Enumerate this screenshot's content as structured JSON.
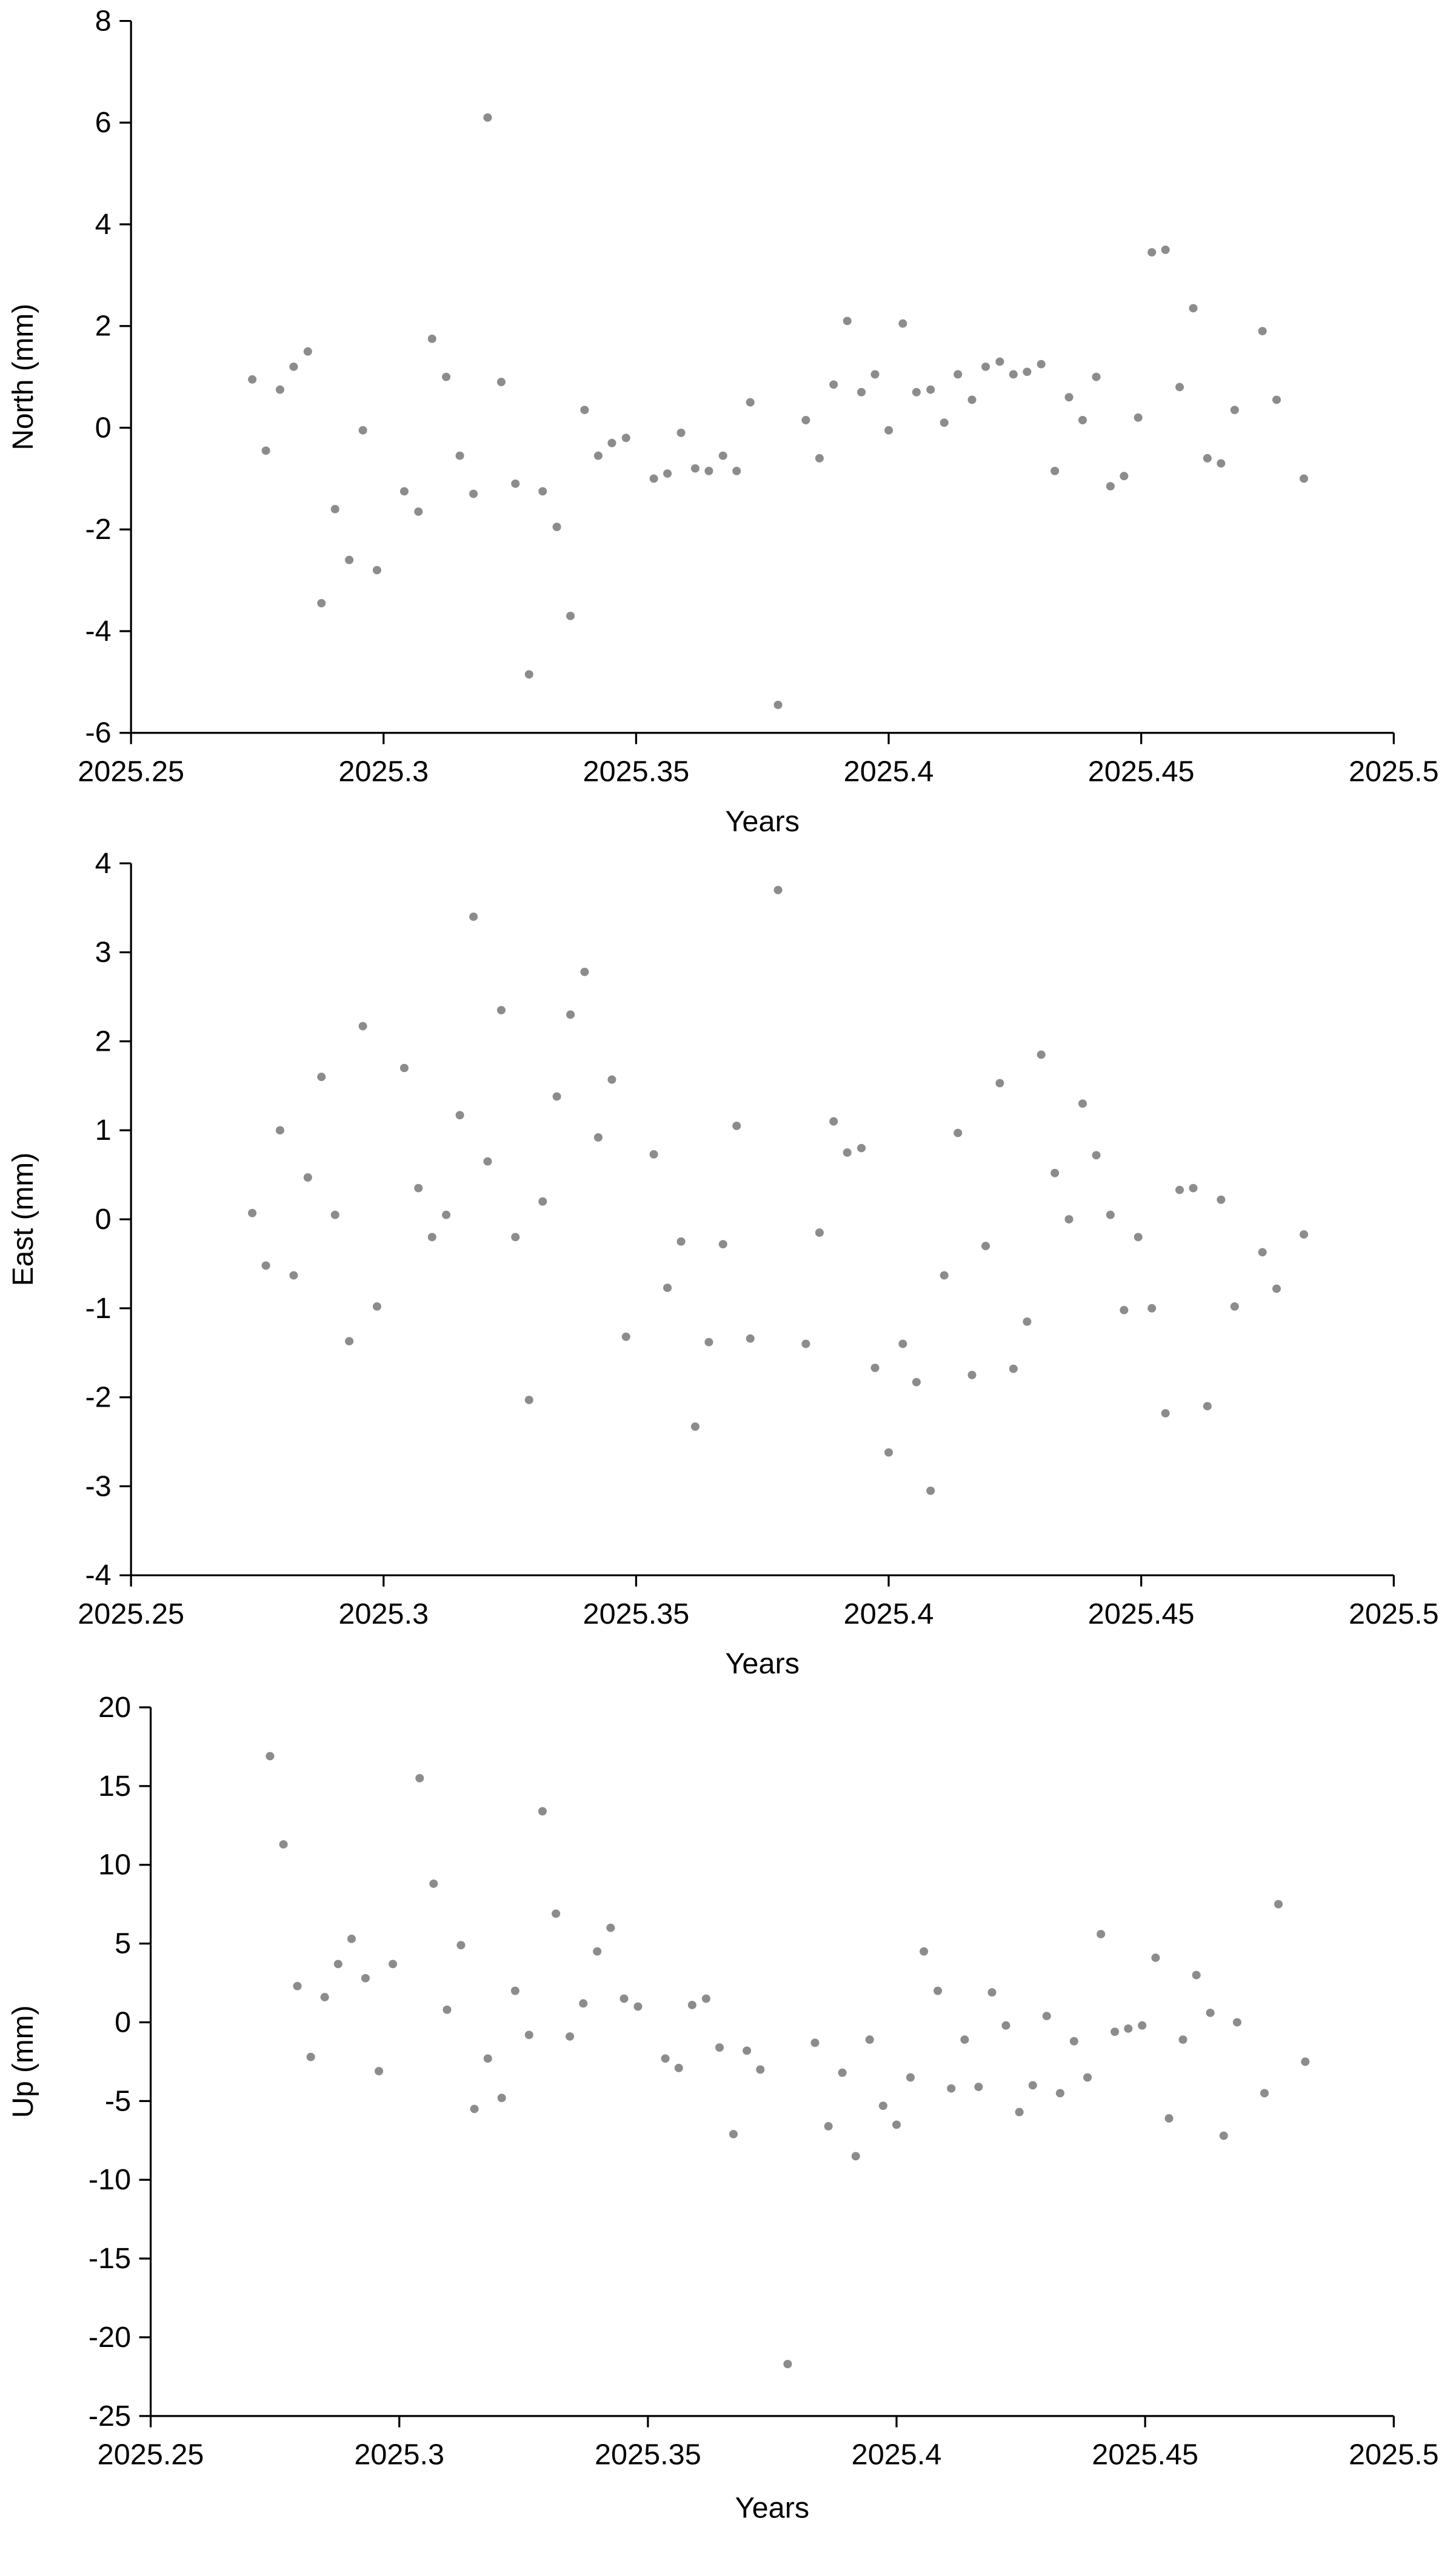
{
  "chart_data": [
    {
      "type": "scatter",
      "ylabel": "North (mm)",
      "xlabel": "Years",
      "color": "#8c8c8c",
      "x": [
        2025.274,
        2025.2767,
        2025.2795,
        2025.2822,
        2025.285,
        2025.2877,
        2025.2904,
        2025.2932,
        2025.2959,
        2025.2987,
        2025.3041,
        2025.3069,
        2025.3096,
        2025.3124,
        2025.3151,
        2025.3178,
        2025.3206,
        2025.3233,
        2025.3261,
        2025.3288,
        2025.3315,
        2025.3343,
        2025.337,
        2025.3398,
        2025.3425,
        2025.3452,
        2025.348,
        2025.3535,
        2025.3562,
        2025.3589,
        2025.3617,
        2025.3644,
        2025.3672,
        2025.3699,
        2025.3726,
        2025.3781,
        2025.3836,
        2025.3863,
        2025.3891,
        2025.3918,
        2025.3946,
        2025.3973,
        2025.4,
        2025.4028,
        2025.4055,
        2025.4083,
        2025.411,
        2025.4137,
        2025.4165,
        2025.4192,
        2025.422,
        2025.4247,
        2025.4274,
        2025.4302,
        2025.4329,
        2025.4357,
        2025.4384,
        2025.4411,
        2025.4439,
        2025.4466,
        2025.4494,
        2025.4521,
        2025.4548,
        2025.4576,
        2025.4603,
        2025.4631,
        2025.4658,
        2025.4685,
        2025.474,
        2025.4768,
        2025.4822
      ],
      "values": [
        0.95,
        -0.45,
        0.75,
        1.2,
        1.5,
        -3.45,
        -1.6,
        -2.6,
        -0.05,
        -2.8,
        -1.25,
        -1.65,
        1.75,
        1.0,
        -0.55,
        -1.3,
        6.1,
        0.9,
        -1.1,
        -4.85,
        -1.25,
        -1.95,
        -3.7,
        0.35,
        -0.55,
        -0.3,
        -0.2,
        -1.0,
        -0.9,
        -0.1,
        -0.8,
        -0.85,
        -0.55,
        -0.85,
        0.5,
        -5.45,
        0.15,
        -0.6,
        0.85,
        2.1,
        0.7,
        1.05,
        -0.05,
        2.05,
        0.7,
        0.75,
        0.1,
        1.05,
        0.55,
        1.2,
        1.3,
        1.05,
        1.1,
        1.25,
        -0.85,
        0.6,
        0.15,
        1.0,
        -1.15,
        -0.95,
        0.2,
        3.45,
        3.5,
        0.8,
        2.35,
        -0.6,
        -0.7,
        0.35,
        1.9,
        0.55,
        -1.0
      ],
      "xlim": [
        2025.25,
        2025.5
      ],
      "xticks": [
        2025.25,
        2025.3,
        2025.35,
        2025.4,
        2025.45,
        2025.5
      ],
      "ylim": [
        -6,
        8
      ],
      "yticks": [
        -6,
        -4,
        -2,
        0,
        2,
        4,
        6,
        8
      ]
    },
    {
      "type": "scatter",
      "ylabel": "East (mm)",
      "xlabel": "Years",
      "color": "#8c8c8c",
      "x": [
        2025.274,
        2025.2767,
        2025.2795,
        2025.2822,
        2025.285,
        2025.2877,
        2025.2904,
        2025.2932,
        2025.2959,
        2025.2987,
        2025.3041,
        2025.3069,
        2025.3096,
        2025.3124,
        2025.3151,
        2025.3178,
        2025.3206,
        2025.3233,
        2025.3261,
        2025.3288,
        2025.3315,
        2025.3343,
        2025.337,
        2025.3398,
        2025.3425,
        2025.3452,
        2025.348,
        2025.3535,
        2025.3562,
        2025.3589,
        2025.3617,
        2025.3644,
        2025.3672,
        2025.3699,
        2025.3726,
        2025.3781,
        2025.3836,
        2025.3863,
        2025.3891,
        2025.3918,
        2025.3946,
        2025.3973,
        2025.4,
        2025.4028,
        2025.4055,
        2025.4083,
        2025.411,
        2025.4137,
        2025.4165,
        2025.4192,
        2025.422,
        2025.4247,
        2025.4274,
        2025.4302,
        2025.4329,
        2025.4357,
        2025.4384,
        2025.4411,
        2025.4439,
        2025.4466,
        2025.4494,
        2025.4521,
        2025.4548,
        2025.4576,
        2025.4603,
        2025.4631,
        2025.4658,
        2025.4685,
        2025.474,
        2025.4768,
        2025.4822
      ],
      "values": [
        0.07,
        -0.52,
        1.0,
        -0.63,
        0.47,
        1.6,
        0.05,
        -1.37,
        2.17,
        -0.98,
        1.7,
        0.35,
        -0.2,
        0.05,
        1.17,
        3.4,
        0.65,
        2.35,
        -0.2,
        -2.03,
        0.2,
        1.38,
        2.3,
        2.78,
        0.92,
        1.57,
        -1.32,
        0.73,
        -0.77,
        -0.25,
        -2.33,
        -1.38,
        -0.28,
        1.05,
        -1.34,
        3.7,
        -1.4,
        -0.15,
        1.1,
        0.75,
        0.8,
        -1.67,
        -2.62,
        -1.4,
        -1.83,
        -3.05,
        -0.63,
        0.97,
        -1.75,
        -0.3,
        1.53,
        -1.68,
        -1.15,
        1.85,
        0.52,
        0.0,
        1.3,
        0.72,
        0.05,
        -1.02,
        -0.2,
        -1.0,
        -2.18,
        0.33,
        0.35,
        -2.1,
        0.22,
        -0.98,
        -0.37,
        -0.78,
        -0.17
      ],
      "xlim": [
        2025.25,
        2025.5
      ],
      "xticks": [
        2025.25,
        2025.3,
        2025.35,
        2025.4,
        2025.45,
        2025.5
      ],
      "ylim": [
        -4,
        4
      ],
      "yticks": [
        -4,
        -3,
        -2,
        -1,
        0,
        1,
        2,
        3,
        4
      ]
    },
    {
      "type": "scatter",
      "ylabel": "Up (mm)",
      "xlabel": "Years",
      "color": "#8c8c8c",
      "x": [
        2025.274,
        2025.2767,
        2025.2795,
        2025.2822,
        2025.285,
        2025.2877,
        2025.2904,
        2025.2932,
        2025.2959,
        2025.2987,
        2025.3041,
        2025.3069,
        2025.3096,
        2025.3124,
        2025.3151,
        2025.3178,
        2025.3206,
        2025.3233,
        2025.3261,
        2025.3288,
        2025.3315,
        2025.3343,
        2025.337,
        2025.3398,
        2025.3425,
        2025.3452,
        2025.348,
        2025.3535,
        2025.3562,
        2025.3589,
        2025.3617,
        2025.3644,
        2025.3672,
        2025.3699,
        2025.3726,
        2025.3781,
        2025.3836,
        2025.3863,
        2025.3891,
        2025.3918,
        2025.3946,
        2025.3973,
        2025.4,
        2025.4028,
        2025.4055,
        2025.4083,
        2025.411,
        2025.4137,
        2025.4165,
        2025.4192,
        2025.422,
        2025.4247,
        2025.4274,
        2025.4302,
        2025.4329,
        2025.4357,
        2025.4384,
        2025.4411,
        2025.4439,
        2025.4466,
        2025.4494,
        2025.4521,
        2025.4548,
        2025.4576,
        2025.4603,
        2025.4631,
        2025.4658,
        2025.4685,
        2025.474,
        2025.4768,
        2025.4822
      ],
      "values": [
        16.9,
        11.3,
        2.3,
        -2.2,
        1.6,
        3.7,
        5.3,
        2.8,
        -3.1,
        3.7,
        15.5,
        8.8,
        0.8,
        4.9,
        -5.5,
        -2.3,
        -4.8,
        2.0,
        -0.8,
        13.4,
        6.9,
        -0.9,
        1.2,
        4.5,
        6.0,
        1.5,
        1.0,
        -2.3,
        -2.9,
        1.1,
        1.5,
        -1.6,
        -7.1,
        -1.8,
        -3.0,
        -21.7,
        -1.3,
        -6.6,
        -3.2,
        -8.5,
        -1.1,
        -5.3,
        -6.5,
        -3.5,
        4.5,
        2.0,
        -4.2,
        -1.1,
        -4.1,
        1.9,
        -0.2,
        -5.7,
        -4.0,
        0.4,
        -4.5,
        -1.2,
        -3.5,
        5.6,
        -0.6,
        -0.4,
        -0.2,
        4.1,
        -6.1,
        -1.1,
        3.0,
        0.6,
        -7.2,
        0.0,
        -4.5,
        7.5,
        -2.5
      ],
      "xlim": [
        2025.25,
        2025.5
      ],
      "xticks": [
        2025.25,
        2025.3,
        2025.35,
        2025.4,
        2025.45,
        2025.5
      ],
      "ylim": [
        -25,
        20
      ],
      "yticks": [
        -25,
        -20,
        -15,
        -10,
        -5,
        0,
        5,
        10,
        15,
        20
      ]
    }
  ]
}
